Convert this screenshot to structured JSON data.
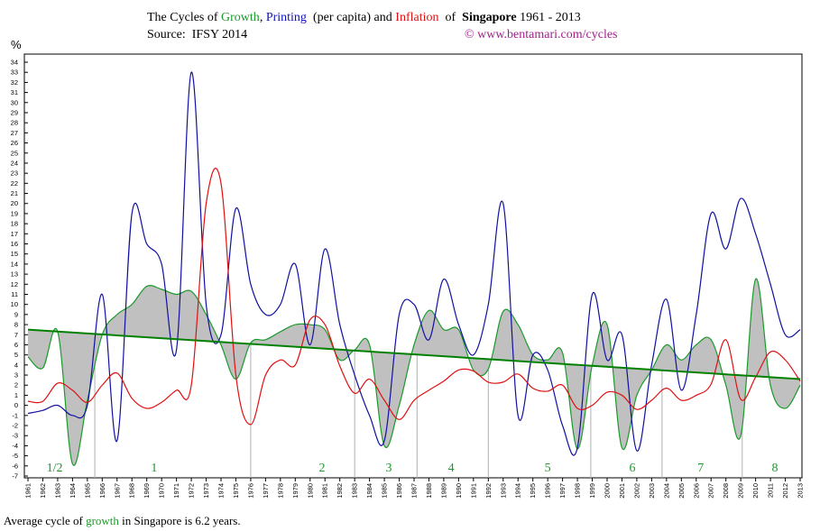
{
  "chart_data": {
    "type": "line",
    "title_parts": [
      {
        "text": "The Cycles of ",
        "color": "#000000"
      },
      {
        "text": "Growth",
        "color": "#1a9a2a"
      },
      {
        "text": ", ",
        "color": "#000000"
      },
      {
        "text": "Printing",
        "color": "#1010c0"
      },
      {
        "text": "  (per capita) and ",
        "color": "#000000"
      },
      {
        "text": "Inflation",
        "color": "#e01010"
      },
      {
        "text": "  of  ",
        "color": "#000000"
      },
      {
        "text": "Singapore",
        "color": "#000000",
        "bold": true
      },
      {
        "text": " 1961 - 2013",
        "color": "#000000"
      }
    ],
    "source": "Source:  IFSY 2014",
    "credit": "© www.bentamari.com/cycles",
    "y_label": "%",
    "footer_parts": [
      {
        "text": "Average cycle of ",
        "color": "#000000"
      },
      {
        "text": "growth",
        "color": "#1a9a2a"
      },
      {
        "text": " in Singapore is 6.2 years.",
        "color": "#000000"
      }
    ],
    "x": [
      1961,
      1962,
      1963,
      1964,
      1965,
      1966,
      1967,
      1968,
      1969,
      1970,
      1971,
      1972,
      1973,
      1974,
      1975,
      1976,
      1977,
      1978,
      1979,
      1980,
      1981,
      1982,
      1983,
      1984,
      1985,
      1986,
      1987,
      1988,
      1989,
      1990,
      1991,
      1992,
      1993,
      1994,
      1995,
      1996,
      1997,
      1998,
      1999,
      2000,
      2001,
      2002,
      2003,
      2004,
      2005,
      2006,
      2007,
      2008,
      2009,
      2010,
      2011,
      2012,
      2013
    ],
    "xlim": [
      1961,
      2013
    ],
    "ylim": [
      -7,
      34
    ],
    "yticks": [
      -7,
      -6,
      -5,
      -4,
      -3,
      -2,
      -1,
      0,
      1,
      2,
      3,
      4,
      5,
      6,
      7,
      8,
      9,
      10,
      11,
      12,
      13,
      14,
      15,
      16,
      17,
      18,
      19,
      20,
      21,
      22,
      23,
      24,
      25,
      26,
      27,
      28,
      29,
      30,
      31,
      32,
      33,
      34
    ],
    "series": [
      {
        "name": "Growth",
        "color": "#1a9a2a",
        "fill": "#c0c0c0",
        "values": [
          4.8,
          3.7,
          7.3,
          -5.8,
          0.5,
          7,
          9,
          10,
          11.8,
          11.5,
          11,
          11.3,
          9,
          6,
          2.6,
          6.2,
          6.5,
          7.3,
          8,
          8,
          7.5,
          4.5,
          5.5,
          6,
          -4,
          0,
          6,
          9.4,
          7.5,
          7.5,
          3.5,
          3.6,
          9.3,
          8,
          5,
          4.5,
          5.2,
          -4.3,
          4,
          8,
          -4.2,
          1,
          3.5,
          6,
          4.5,
          6,
          6.5,
          2,
          -3,
          12.5,
          2,
          -0.3,
          2
        ]
      },
      {
        "name": "Printing",
        "color": "#1010a0",
        "values": [
          -0.8,
          -0.5,
          0,
          -1,
          0,
          11,
          -3.5,
          19,
          16,
          14,
          5.5,
          33,
          10,
          7,
          19.5,
          12,
          9,
          10,
          14,
          6,
          15.5,
          8,
          3,
          -1,
          -3.5,
          9,
          10,
          6.5,
          12.5,
          8,
          5,
          10,
          20,
          -1,
          5,
          3.5,
          -2,
          -4.2,
          11,
          4.5,
          7,
          -4.5,
          4,
          10.5,
          1.5,
          9,
          19,
          15.5,
          20.5,
          17,
          12,
          7,
          7.5
        ]
      },
      {
        "name": "Inflation",
        "color": "#e01010",
        "values": [
          0.4,
          0.4,
          2.2,
          1.5,
          0.3,
          2,
          3.2,
          0.7,
          -0.3,
          0.3,
          1.5,
          2,
          20,
          22,
          3,
          -1.9,
          3,
          4.5,
          4,
          8.5,
          8,
          3.9,
          1.2,
          2.6,
          0.5,
          -1.4,
          0.5,
          1.5,
          2.4,
          3.5,
          3.4,
          2.3,
          2.3,
          3.1,
          1.7,
          1.4,
          2,
          -0.3,
          0,
          1.3,
          1,
          -0.4,
          0.5,
          1.7,
          0.5,
          1,
          2.1,
          6.5,
          0.6,
          2.8,
          5.3,
          4.5,
          2.4
        ]
      }
    ],
    "trend": {
      "color": "#008000",
      "start": 7.5,
      "end": 2.6
    },
    "cycle_boundaries": [
      1965.5,
      1976,
      1983,
      1987.2,
      1992,
      1998.9,
      2003.7,
      2009.1
    ],
    "cycle_labels": [
      {
        "label": "1/2",
        "x": 1962.8
      },
      {
        "label": "1",
        "x": 1969.5
      },
      {
        "label": "2",
        "x": 1980.8
      },
      {
        "label": "3",
        "x": 1985.3
      },
      {
        "label": "4",
        "x": 1989.5
      },
      {
        "label": "5",
        "x": 1996
      },
      {
        "label": "6",
        "x": 2001.7
      },
      {
        "label": "7",
        "x": 2006.3
      },
      {
        "label": "8",
        "x": 2011.3
      }
    ]
  }
}
